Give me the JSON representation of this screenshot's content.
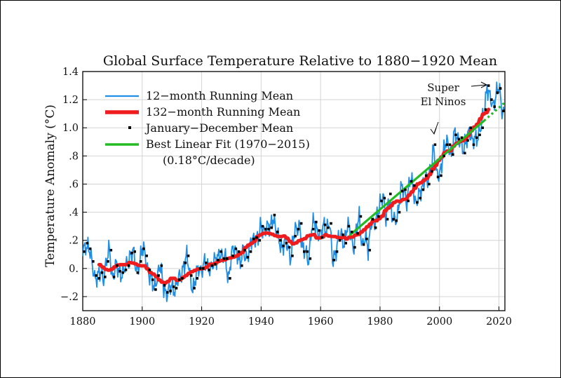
{
  "chart_data": {
    "type": "line",
    "title": "Global Surface Temperature Relative to 1880−1920 Mean",
    "xlabel": "",
    "ylabel": "Temperature Anomaly (°C)",
    "xlim": [
      1880,
      2022
    ],
    "ylim": [
      -0.3,
      1.4
    ],
    "xticks": [
      1880,
      1900,
      1920,
      1940,
      1960,
      1980,
      2000,
      2020
    ],
    "xtick_labels": [
      "1880",
      "1900",
      "1920",
      "1940",
      "1960",
      "1980",
      "2000",
      "2020"
    ],
    "yticks": [
      -0.2,
      0,
      0.2,
      0.4,
      0.6,
      0.8,
      1.0,
      1.2,
      1.4
    ],
    "ytick_labels": [
      "−.2",
      "0.",
      ".2",
      ".4",
      ".6",
      ".8",
      "1.0",
      "1.2",
      "1.4"
    ],
    "grid": true,
    "legend_position": "top-left",
    "colors": {
      "running12": "#1f8ee6",
      "running132": "#ee1c1c",
      "annual": "#000000",
      "fit": "#22bb22"
    },
    "legend": {
      "running12": "12−month Running Mean",
      "running132": "132−month Running Mean",
      "annual": "January−December Mean",
      "fit": "Best Linear Fit (1970−2015)",
      "fit_note": "(0.18°C/decade)"
    },
    "annotations": {
      "super_line1": "Super",
      "super_line2": "El Ninos"
    },
    "series": [
      {
        "name": "January−December Mean",
        "x": [
          1880,
          1881,
          1882,
          1883,
          1884,
          1885,
          1886,
          1887,
          1888,
          1889,
          1890,
          1891,
          1892,
          1893,
          1894,
          1895,
          1896,
          1897,
          1898,
          1899,
          1900,
          1901,
          1902,
          1903,
          1904,
          1905,
          1906,
          1907,
          1908,
          1909,
          1910,
          1911,
          1912,
          1913,
          1914,
          1915,
          1916,
          1917,
          1918,
          1919,
          1920,
          1921,
          1922,
          1923,
          1924,
          1925,
          1926,
          1927,
          1928,
          1929,
          1930,
          1931,
          1932,
          1933,
          1934,
          1935,
          1936,
          1937,
          1938,
          1939,
          1940,
          1941,
          1942,
          1943,
          1944,
          1945,
          1946,
          1947,
          1948,
          1949,
          1950,
          1951,
          1952,
          1953,
          1954,
          1955,
          1956,
          1957,
          1958,
          1959,
          1960,
          1961,
          1962,
          1963,
          1964,
          1965,
          1966,
          1967,
          1968,
          1969,
          1970,
          1971,
          1972,
          1973,
          1974,
          1975,
          1976,
          1977,
          1978,
          1979,
          1980,
          1981,
          1982,
          1983,
          1984,
          1985,
          1986,
          1987,
          1988,
          1989,
          1990,
          1991,
          1992,
          1993,
          1994,
          1995,
          1996,
          1997,
          1998,
          1999,
          2000,
          2001,
          2002,
          2003,
          2004,
          2005,
          2006,
          2007,
          2008,
          2009,
          2010,
          2011,
          2012,
          2013,
          2014,
          2015,
          2016,
          2017,
          2018,
          2019,
          2020,
          2021
        ],
        "y": [
          0.12,
          0.18,
          0.14,
          0.05,
          -0.05,
          -0.07,
          -0.03,
          -0.06,
          0.05,
          0.13,
          -0.06,
          0.02,
          -0.02,
          -0.03,
          -0.01,
          0.02,
          0.11,
          0.12,
          -0.03,
          0.05,
          0.14,
          0.09,
          -0.01,
          -0.08,
          -0.15,
          -0.05,
          0.02,
          -0.12,
          -0.17,
          -0.16,
          -0.13,
          -0.14,
          -0.08,
          -0.07,
          0.04,
          0.09,
          -0.05,
          -0.14,
          -0.07,
          0.0,
          0.0,
          0.04,
          -0.01,
          0.02,
          0.03,
          0.06,
          0.12,
          0.07,
          0.07,
          -0.07,
          0.09,
          0.14,
          0.12,
          0.02,
          0.13,
          0.08,
          0.12,
          0.21,
          0.22,
          0.2,
          0.3,
          0.28,
          0.28,
          0.29,
          0.38,
          0.26,
          0.2,
          0.16,
          0.18,
          0.15,
          0.09,
          0.23,
          0.28,
          0.32,
          0.12,
          0.12,
          0.07,
          0.28,
          0.33,
          0.27,
          0.22,
          0.31,
          0.29,
          0.32,
          0.06,
          0.12,
          0.2,
          0.24,
          0.18,
          0.3,
          0.26,
          0.15,
          0.25,
          0.37,
          0.17,
          0.21,
          0.13,
          0.35,
          0.29,
          0.37,
          0.48,
          0.5,
          0.35,
          0.53,
          0.35,
          0.34,
          0.4,
          0.55,
          0.56,
          0.48,
          0.62,
          0.59,
          0.47,
          0.5,
          0.56,
          0.66,
          0.6,
          0.69,
          0.88,
          0.65,
          0.66,
          0.8,
          0.88,
          0.88,
          0.81,
          0.95,
          0.92,
          0.93,
          0.82,
          0.91,
          1.0,
          0.88,
          0.93,
          0.95,
          1.0,
          1.13,
          1.3,
          1.2,
          1.15,
          1.25,
          1.28,
          1.12
        ]
      },
      {
        "name": "Best Linear Fit (1970−2015)",
        "x": [
          1970,
          2015,
          2022
        ],
        "y": [
          0.24,
          1.05,
          1.18
        ]
      }
    ]
  }
}
